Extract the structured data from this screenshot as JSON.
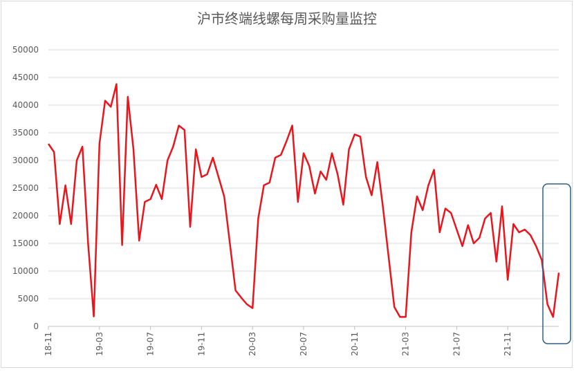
{
  "chart_data": {
    "type": "line",
    "title": "沪市终端线螺每周采购量监控",
    "categories": [
      "18-11",
      null,
      null,
      null,
      null,
      null,
      null,
      null,
      null,
      "19-03",
      null,
      null,
      null,
      null,
      null,
      null,
      null,
      null,
      "19-07",
      null,
      null,
      null,
      null,
      null,
      null,
      null,
      null,
      "19-11",
      null,
      null,
      null,
      null,
      null,
      null,
      null,
      null,
      "20-03",
      null,
      null,
      null,
      null,
      null,
      null,
      null,
      null,
      "20-07",
      null,
      null,
      null,
      null,
      null,
      null,
      null,
      null,
      "20-11",
      null,
      null,
      null,
      null,
      null,
      null,
      null,
      null,
      "21-03",
      null,
      null,
      null,
      null,
      null,
      null,
      null,
      null,
      "21-07",
      null,
      null,
      null,
      null,
      null,
      null,
      null,
      null,
      "21-11",
      null,
      null,
      null,
      null,
      null,
      null,
      null,
      null,
      null
    ],
    "series": [
      {
        "color": "#e8151b",
        "values": [
          33000,
          31500,
          18500,
          25500,
          18500,
          30000,
          32500,
          15000,
          1800,
          33000,
          40800,
          39700,
          43800,
          14700,
          41500,
          32000,
          15500,
          22500,
          23000,
          25600,
          23000,
          30000,
          32500,
          36300,
          35500,
          18000,
          32000,
          27000,
          27500,
          30500,
          27000,
          23500,
          15000,
          6500,
          5200,
          4000,
          3300,
          19500,
          25500,
          26000,
          30500,
          31000,
          33500,
          36300,
          22500,
          31300,
          29000,
          24000,
          28000,
          26500,
          31300,
          27500,
          22000,
          32000,
          34700,
          34300,
          27000,
          23700,
          29700,
          21500,
          12500,
          3500,
          1700,
          1700,
          17000,
          23500,
          21000,
          25500,
          28300,
          17000,
          21300,
          20500,
          17500,
          14500,
          18300,
          15000,
          16000,
          19500,
          20500,
          11700,
          21700,
          8400,
          18500,
          17000,
          17500,
          16500,
          14500,
          12000,
          4000,
          1700,
          9700
        ]
      }
    ],
    "ylim": [
      0,
      50000
    ],
    "yticks": [
      0,
      5000,
      10000,
      15000,
      20000,
      25000,
      30000,
      35000,
      40000,
      45000,
      50000
    ],
    "grid": true
  }
}
